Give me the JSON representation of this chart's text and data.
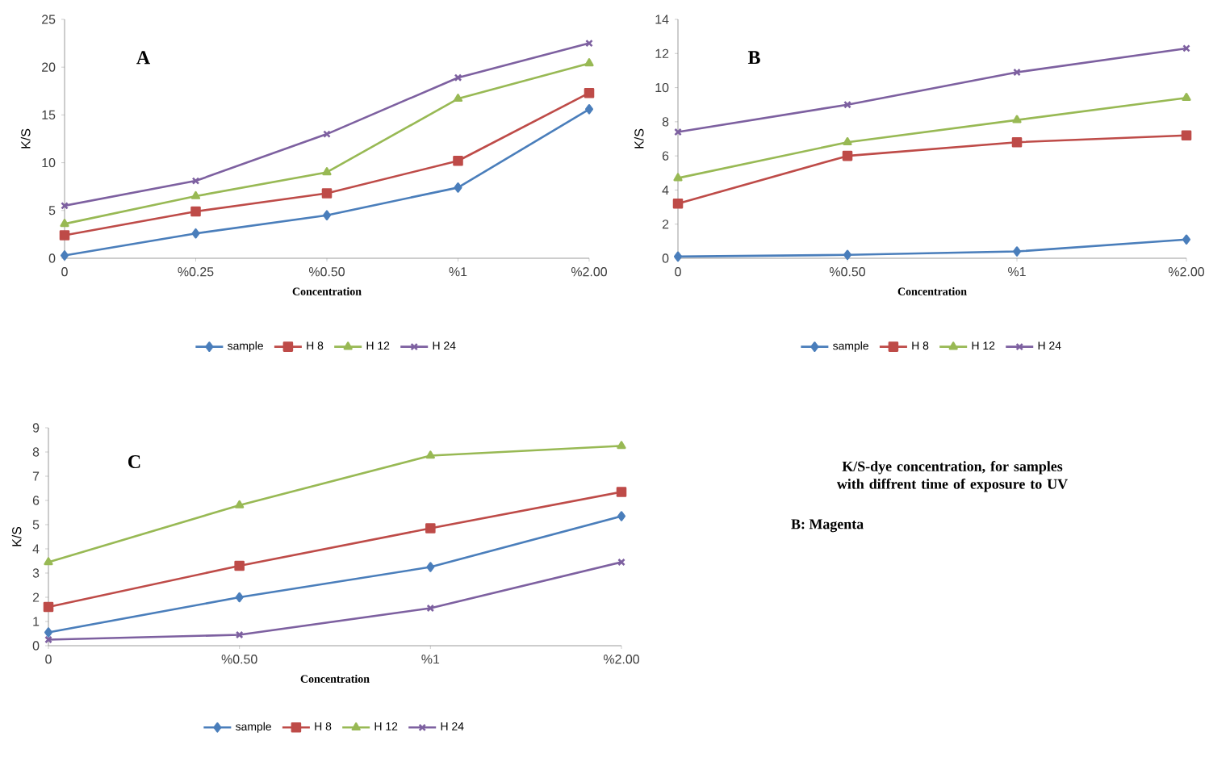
{
  "chart_data": [
    {
      "type": "line",
      "title": "A",
      "xlabel": "Concentration",
      "ylabel": "K/S",
      "categories": [
        "0",
        "%0.25",
        "%0.50",
        "%1",
        "%2.00"
      ],
      "ylim": [
        0,
        25
      ],
      "yticks": [
        0,
        5,
        10,
        15,
        20,
        25
      ],
      "legend": "bottom",
      "series": [
        {
          "name": "sample",
          "color": "#4a7ebb",
          "marker": "diamond",
          "values": [
            0.3,
            2.6,
            4.5,
            7.4,
            15.6
          ]
        },
        {
          "name": "H 8",
          "color": "#be4b48",
          "marker": "square",
          "values": [
            2.4,
            4.9,
            6.8,
            10.2,
            17.3
          ]
        },
        {
          "name": "H 12",
          "color": "#98b954",
          "marker": "triangle",
          "values": [
            3.6,
            6.5,
            9.0,
            16.7,
            20.4
          ]
        },
        {
          "name": "H 24",
          "color": "#7d60a0",
          "marker": "cross",
          "values": [
            5.5,
            8.1,
            13.0,
            18.9,
            22.5
          ]
        }
      ]
    },
    {
      "type": "line",
      "title": "B",
      "xlabel": "Concentration",
      "ylabel": "K/S",
      "categories": [
        "0",
        "%0.50",
        "%1",
        "%2.00"
      ],
      "ylim": [
        0,
        14
      ],
      "yticks": [
        0,
        2,
        4,
        6,
        8,
        10,
        12,
        14
      ],
      "legend": "bottom",
      "series": [
        {
          "name": "sample",
          "color": "#4a7ebb",
          "marker": "diamond",
          "values": [
            0.1,
            0.2,
            0.4,
            1.1
          ]
        },
        {
          "name": "H 8",
          "color": "#be4b48",
          "marker": "square",
          "values": [
            3.2,
            6.0,
            6.8,
            7.2
          ]
        },
        {
          "name": "H 12",
          "color": "#98b954",
          "marker": "triangle",
          "values": [
            4.7,
            6.8,
            8.1,
            9.4
          ]
        },
        {
          "name": "H 24",
          "color": "#7d60a0",
          "marker": "cross",
          "values": [
            7.4,
            9.0,
            10.9,
            12.3
          ]
        }
      ]
    },
    {
      "type": "line",
      "title": "C",
      "xlabel": "Concentration",
      "ylabel": "K/S",
      "categories": [
        "0",
        "%0.50",
        "%1",
        "%2.00"
      ],
      "ylim": [
        0,
        9
      ],
      "yticks": [
        0,
        1,
        2,
        3,
        4,
        5,
        6,
        7,
        8,
        9
      ],
      "legend": "bottom",
      "series": [
        {
          "name": "sample",
          "color": "#4a7ebb",
          "marker": "diamond",
          "values": [
            0.55,
            2.0,
            3.25,
            5.35
          ]
        },
        {
          "name": "H 8",
          "color": "#be4b48",
          "marker": "square",
          "values": [
            1.6,
            3.3,
            4.85,
            6.35
          ]
        },
        {
          "name": "H 12",
          "color": "#98b954",
          "marker": "triangle",
          "values": [
            3.45,
            5.8,
            7.85,
            8.25
          ]
        },
        {
          "name": "H 24",
          "color": "#7d60a0",
          "marker": "cross",
          "values": [
            0.25,
            0.45,
            1.55,
            3.45
          ]
        }
      ]
    },
    {
      "type": "other",
      "title": "K/S-dye concentration, for samples with diffrent time of exposure to UV",
      "annotations": [
        "B: Magenta"
      ]
    }
  ]
}
